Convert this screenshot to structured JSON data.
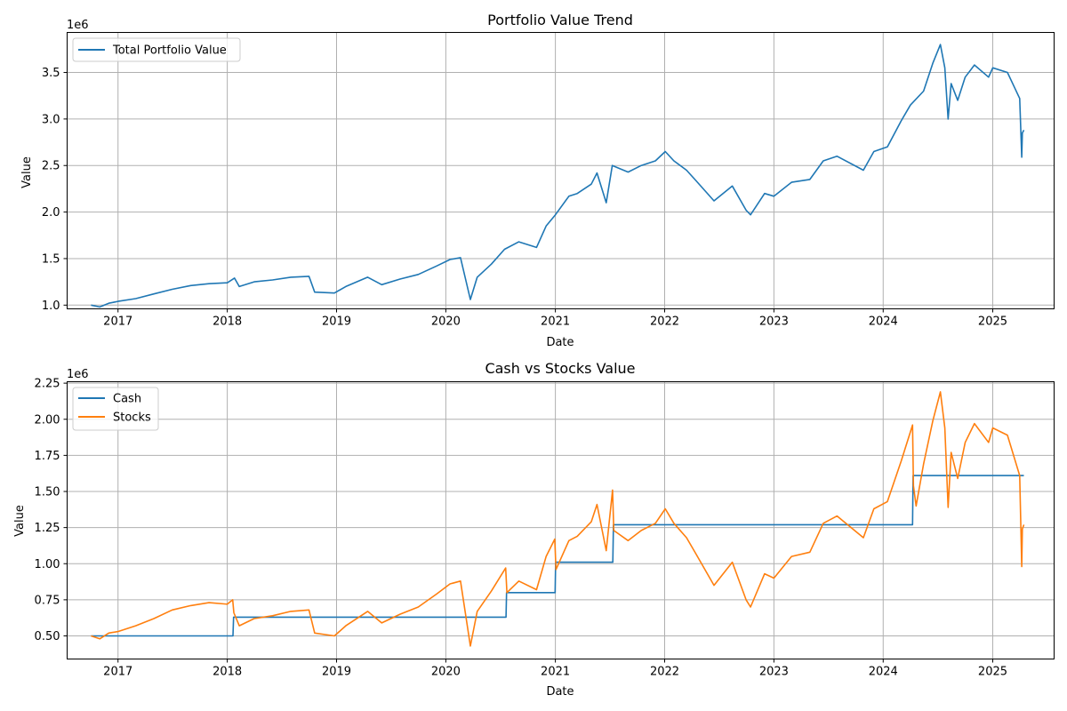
{
  "chart_data": [
    {
      "type": "line",
      "title": "Portfolio Value Trend",
      "xlabel": "Date",
      "ylabel": "Value",
      "y_scale_label": "1e6",
      "xlim": [
        "2016-07-15",
        "2025-07-25"
      ],
      "ylim": [
        0.96,
        3.93
      ],
      "x_ticks": [
        "2017",
        "2018",
        "2019",
        "2020",
        "2021",
        "2022",
        "2023",
        "2024",
        "2025"
      ],
      "y_ticks": [
        "1.0",
        "1.5",
        "2.0",
        "2.5",
        "3.0",
        "3.5"
      ],
      "grid": true,
      "legend": "upper left",
      "series": [
        {
          "name": "Total Portfolio Value",
          "color": "#1f77b4",
          "points": [
            [
              "2016-10-03",
              1.0
            ],
            [
              "2016-11-01",
              0.98
            ],
            [
              "2016-12-01",
              1.02
            ],
            [
              "2017-01-01",
              1.04
            ],
            [
              "2017-03-01",
              1.07
            ],
            [
              "2017-05-01",
              1.12
            ],
            [
              "2017-07-01",
              1.17
            ],
            [
              "2017-09-01",
              1.21
            ],
            [
              "2017-11-01",
              1.23
            ],
            [
              "2018-01-01",
              1.24
            ],
            [
              "2018-01-25",
              1.29
            ],
            [
              "2018-02-10",
              1.2
            ],
            [
              "2018-04-01",
              1.25
            ],
            [
              "2018-06-01",
              1.27
            ],
            [
              "2018-08-01",
              1.3
            ],
            [
              "2018-10-01",
              1.31
            ],
            [
              "2018-10-20",
              1.14
            ],
            [
              "2018-12-25",
              1.13
            ],
            [
              "2019-02-01",
              1.2
            ],
            [
              "2019-04-15",
              1.3
            ],
            [
              "2019-06-01",
              1.22
            ],
            [
              "2019-08-01",
              1.28
            ],
            [
              "2019-10-01",
              1.33
            ],
            [
              "2019-12-01",
              1.42
            ],
            [
              "2020-01-15",
              1.49
            ],
            [
              "2020-02-19",
              1.51
            ],
            [
              "2020-03-23",
              1.06
            ],
            [
              "2020-04-15",
              1.3
            ],
            [
              "2020-06-01",
              1.44
            ],
            [
              "2020-07-15",
              1.6
            ],
            [
              "2020-09-01",
              1.68
            ],
            [
              "2020-10-30",
              1.62
            ],
            [
              "2020-12-01",
              1.85
            ],
            [
              "2021-01-01",
              1.97
            ],
            [
              "2021-02-15",
              2.17
            ],
            [
              "2021-03-15",
              2.2
            ],
            [
              "2021-05-01",
              2.3
            ],
            [
              "2021-05-20",
              2.42
            ],
            [
              "2021-06-20",
              2.1
            ],
            [
              "2021-07-10",
              2.5
            ],
            [
              "2021-09-01",
              2.43
            ],
            [
              "2021-10-15",
              2.5
            ],
            [
              "2021-12-01",
              2.55
            ],
            [
              "2022-01-03",
              2.65
            ],
            [
              "2022-02-01",
              2.55
            ],
            [
              "2022-03-15",
              2.45
            ],
            [
              "2022-04-15",
              2.34
            ],
            [
              "2022-06-15",
              2.12
            ],
            [
              "2022-08-15",
              2.28
            ],
            [
              "2022-09-30",
              2.02
            ],
            [
              "2022-10-15",
              1.97
            ],
            [
              "2022-12-01",
              2.2
            ],
            [
              "2023-01-01",
              2.17
            ],
            [
              "2023-03-01",
              2.32
            ],
            [
              "2023-05-01",
              2.35
            ],
            [
              "2023-06-15",
              2.55
            ],
            [
              "2023-07-31",
              2.6
            ],
            [
              "2023-10-27",
              2.45
            ],
            [
              "2023-12-01",
              2.65
            ],
            [
              "2024-01-15",
              2.7
            ],
            [
              "2024-03-01",
              2.98
            ],
            [
              "2024-04-01",
              3.15
            ],
            [
              "2024-05-15",
              3.3
            ],
            [
              "2024-06-15",
              3.6
            ],
            [
              "2024-07-10",
              3.8
            ],
            [
              "2024-07-25",
              3.55
            ],
            [
              "2024-08-05",
              3.0
            ],
            [
              "2024-08-15",
              3.38
            ],
            [
              "2024-09-06",
              3.2
            ],
            [
              "2024-10-01",
              3.45
            ],
            [
              "2024-11-01",
              3.58
            ],
            [
              "2024-12-18",
              3.45
            ],
            [
              "2025-01-01",
              3.55
            ],
            [
              "2025-02-19",
              3.5
            ],
            [
              "2025-03-13",
              3.35
            ],
            [
              "2025-04-01",
              3.22
            ],
            [
              "2025-04-08",
              2.59
            ],
            [
              "2025-04-10",
              2.85
            ],
            [
              "2025-04-15",
              2.88
            ]
          ]
        }
      ]
    },
    {
      "type": "line",
      "title": "Cash vs Stocks Value",
      "xlabel": "Date",
      "ylabel": "Value",
      "y_scale_label": "1e6",
      "xlim": [
        "2016-07-15",
        "2025-07-25"
      ],
      "ylim": [
        0.34,
        2.26
      ],
      "x_ticks": [
        "2017",
        "2018",
        "2019",
        "2020",
        "2021",
        "2022",
        "2023",
        "2024",
        "2025"
      ],
      "y_ticks": [
        "0.50",
        "0.75",
        "1.00",
        "1.25",
        "1.50",
        "1.75",
        "2.00",
        "2.25"
      ],
      "grid": true,
      "legend": "upper left",
      "series": [
        {
          "name": "Cash",
          "color": "#1f77b4",
          "points": [
            [
              "2016-10-03",
              0.5
            ],
            [
              "2018-01-20",
              0.5
            ],
            [
              "2018-01-22",
              0.63
            ],
            [
              "2020-07-20",
              0.63
            ],
            [
              "2020-07-22",
              0.8
            ],
            [
              "2020-12-31",
              0.8
            ],
            [
              "2021-01-02",
              1.01
            ],
            [
              "2021-07-12",
              1.01
            ],
            [
              "2021-07-14",
              1.27
            ],
            [
              "2024-04-08",
              1.27
            ],
            [
              "2024-04-10",
              1.61
            ],
            [
              "2025-04-15",
              1.61
            ]
          ]
        },
        {
          "name": "Stocks",
          "color": "#ff7f0e",
          "points": [
            [
              "2016-10-03",
              0.5
            ],
            [
              "2016-11-01",
              0.48
            ],
            [
              "2016-12-01",
              0.52
            ],
            [
              "2017-01-01",
              0.53
            ],
            [
              "2017-03-01",
              0.57
            ],
            [
              "2017-05-01",
              0.62
            ],
            [
              "2017-07-01",
              0.68
            ],
            [
              "2017-09-01",
              0.71
            ],
            [
              "2017-11-01",
              0.73
            ],
            [
              "2018-01-01",
              0.72
            ],
            [
              "2018-01-19",
              0.75
            ],
            [
              "2018-01-23",
              0.66
            ],
            [
              "2018-02-10",
              0.57
            ],
            [
              "2018-04-01",
              0.62
            ],
            [
              "2018-06-01",
              0.64
            ],
            [
              "2018-08-01",
              0.67
            ],
            [
              "2018-10-01",
              0.68
            ],
            [
              "2018-10-20",
              0.52
            ],
            [
              "2018-12-25",
              0.5
            ],
            [
              "2019-02-01",
              0.57
            ],
            [
              "2019-04-15",
              0.67
            ],
            [
              "2019-06-01",
              0.59
            ],
            [
              "2019-08-01",
              0.65
            ],
            [
              "2019-10-01",
              0.7
            ],
            [
              "2019-12-01",
              0.79
            ],
            [
              "2020-01-15",
              0.86
            ],
            [
              "2020-02-19",
              0.88
            ],
            [
              "2020-03-23",
              0.43
            ],
            [
              "2020-04-15",
              0.67
            ],
            [
              "2020-06-01",
              0.81
            ],
            [
              "2020-07-19",
              0.97
            ],
            [
              "2020-07-23",
              0.8
            ],
            [
              "2020-09-01",
              0.88
            ],
            [
              "2020-10-30",
              0.82
            ],
            [
              "2020-12-01",
              1.05
            ],
            [
              "2020-12-30",
              1.17
            ],
            [
              "2021-01-03",
              0.96
            ],
            [
              "2021-02-15",
              1.16
            ],
            [
              "2021-03-15",
              1.19
            ],
            [
              "2021-05-01",
              1.29
            ],
            [
              "2021-05-20",
              1.41
            ],
            [
              "2021-06-20",
              1.09
            ],
            [
              "2021-07-11",
              1.51
            ],
            [
              "2021-07-15",
              1.23
            ],
            [
              "2021-09-01",
              1.16
            ],
            [
              "2021-10-15",
              1.23
            ],
            [
              "2021-12-01",
              1.28
            ],
            [
              "2022-01-03",
              1.38
            ],
            [
              "2022-02-01",
              1.28
            ],
            [
              "2022-03-15",
              1.18
            ],
            [
              "2022-04-15",
              1.07
            ],
            [
              "2022-06-15",
              0.85
            ],
            [
              "2022-08-15",
              1.01
            ],
            [
              "2022-09-30",
              0.75
            ],
            [
              "2022-10-15",
              0.7
            ],
            [
              "2022-12-01",
              0.93
            ],
            [
              "2023-01-01",
              0.9
            ],
            [
              "2023-03-01",
              1.05
            ],
            [
              "2023-05-01",
              1.08
            ],
            [
              "2023-06-15",
              1.28
            ],
            [
              "2023-07-31",
              1.33
            ],
            [
              "2023-10-27",
              1.18
            ],
            [
              "2023-12-01",
              1.38
            ],
            [
              "2024-01-15",
              1.43
            ],
            [
              "2024-03-01",
              1.71
            ],
            [
              "2024-04-08",
              1.96
            ],
            [
              "2024-04-11",
              1.54
            ],
            [
              "2024-04-20",
              1.4
            ],
            [
              "2024-05-15",
              1.69
            ],
            [
              "2024-06-15",
              1.99
            ],
            [
              "2024-07-10",
              2.19
            ],
            [
              "2024-07-25",
              1.94
            ],
            [
              "2024-08-05",
              1.39
            ],
            [
              "2024-08-15",
              1.77
            ],
            [
              "2024-09-06",
              1.59
            ],
            [
              "2024-10-01",
              1.84
            ],
            [
              "2024-11-01",
              1.97
            ],
            [
              "2024-12-18",
              1.84
            ],
            [
              "2025-01-01",
              1.94
            ],
            [
              "2025-02-19",
              1.89
            ],
            [
              "2025-03-13",
              1.74
            ],
            [
              "2025-04-01",
              1.61
            ],
            [
              "2025-04-08",
              0.98
            ],
            [
              "2025-04-10",
              1.24
            ],
            [
              "2025-04-15",
              1.27
            ]
          ]
        }
      ]
    }
  ]
}
